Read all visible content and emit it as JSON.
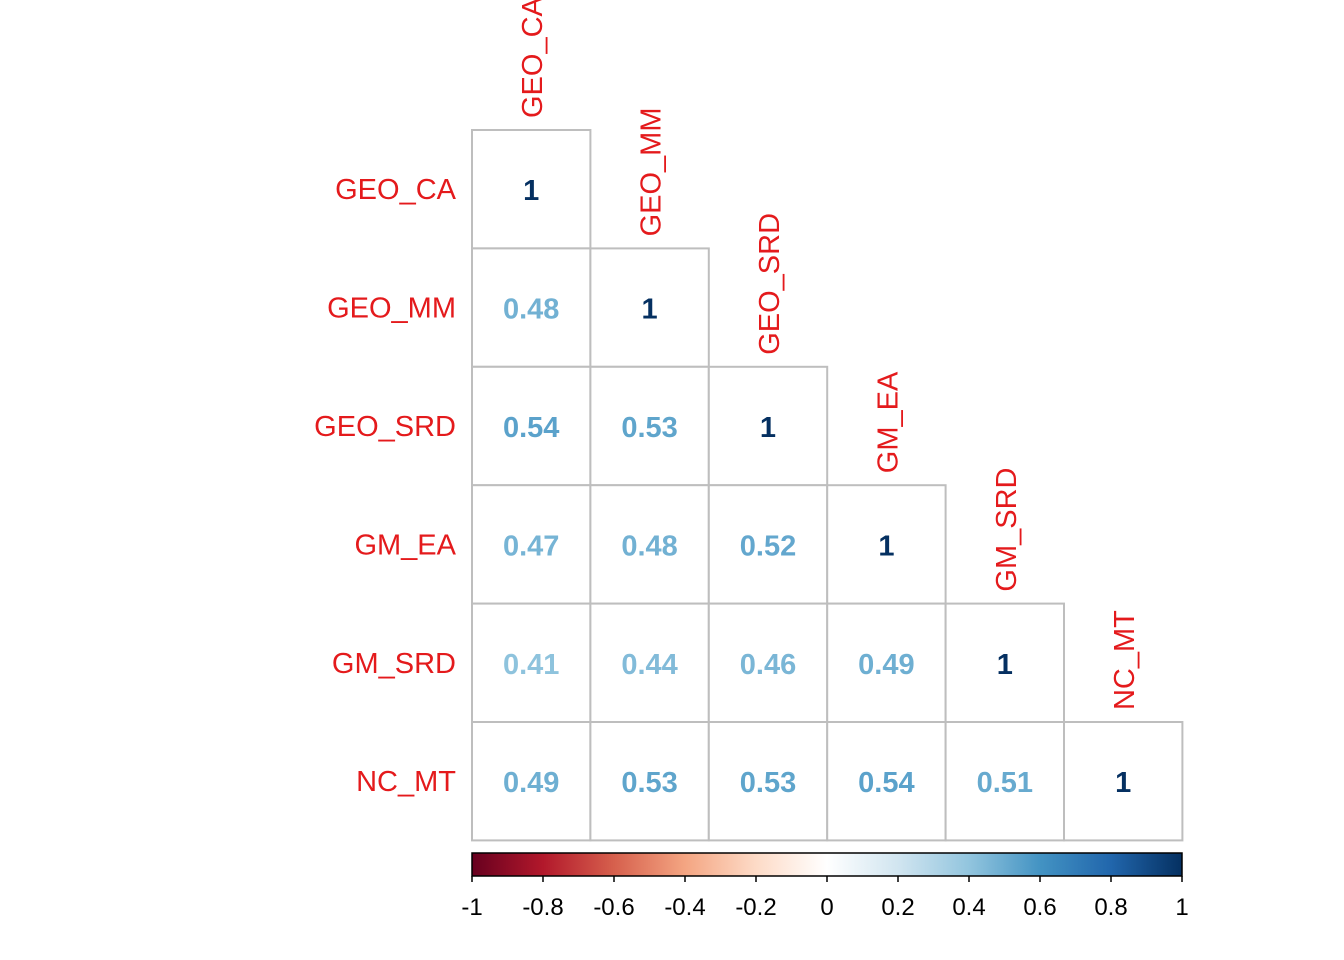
{
  "chart_data": {
    "type": "heatmap",
    "subtype": "lower-triangle correlation matrix",
    "variables": [
      "GEO_CA",
      "GEO_MM",
      "GEO_SRD",
      "GM_EA",
      "GM_SRD",
      "NC_MT"
    ],
    "row_labels": [
      "GEO_CA",
      "GEO_MM",
      "GEO_SRD",
      "GM_EA",
      "GM_SRD",
      "NC_MT"
    ],
    "col_labels": [
      "GEO_CA",
      "GEO_MM",
      "GEO_SRD",
      "GM_EA",
      "GM_SRD",
      "NC_MT"
    ],
    "cells": [
      {
        "row": 0,
        "col": 0,
        "value": 1,
        "label": "1"
      },
      {
        "row": 1,
        "col": 0,
        "value": 0.48,
        "label": "0.48"
      },
      {
        "row": 1,
        "col": 1,
        "value": 1,
        "label": "1"
      },
      {
        "row": 2,
        "col": 0,
        "value": 0.54,
        "label": "0.54"
      },
      {
        "row": 2,
        "col": 1,
        "value": 0.53,
        "label": "0.53"
      },
      {
        "row": 2,
        "col": 2,
        "value": 1,
        "label": "1"
      },
      {
        "row": 3,
        "col": 0,
        "value": 0.47,
        "label": "0.47"
      },
      {
        "row": 3,
        "col": 1,
        "value": 0.48,
        "label": "0.48"
      },
      {
        "row": 3,
        "col": 2,
        "value": 0.52,
        "label": "0.52"
      },
      {
        "row": 3,
        "col": 3,
        "value": 1,
        "label": "1"
      },
      {
        "row": 4,
        "col": 0,
        "value": 0.41,
        "label": "0.41"
      },
      {
        "row": 4,
        "col": 1,
        "value": 0.44,
        "label": "0.44"
      },
      {
        "row": 4,
        "col": 2,
        "value": 0.46,
        "label": "0.46"
      },
      {
        "row": 4,
        "col": 3,
        "value": 0.49,
        "label": "0.49"
      },
      {
        "row": 4,
        "col": 4,
        "value": 1,
        "label": "1"
      },
      {
        "row": 5,
        "col": 0,
        "value": 0.49,
        "label": "0.49"
      },
      {
        "row": 5,
        "col": 1,
        "value": 0.53,
        "label": "0.53"
      },
      {
        "row": 5,
        "col": 2,
        "value": 0.53,
        "label": "0.53"
      },
      {
        "row": 5,
        "col": 3,
        "value": 0.54,
        "label": "0.54"
      },
      {
        "row": 5,
        "col": 4,
        "value": 0.51,
        "label": "0.51"
      },
      {
        "row": 5,
        "col": 5,
        "value": 1,
        "label": "1"
      }
    ],
    "colorbar": {
      "range": [
        -1,
        1
      ],
      "ticks": [
        "-1",
        "-0.8",
        "-0.6",
        "-0.4",
        "-0.2",
        "0",
        "0.2",
        "0.4",
        "0.6",
        "0.8",
        "1"
      ],
      "gradient_colors": [
        "#67001F",
        "#B2182B",
        "#D6604D",
        "#F4A582",
        "#FDDBC7",
        "#FFFFFF",
        "#D1E5F0",
        "#92C5DE",
        "#4393C3",
        "#2166AC",
        "#053061"
      ]
    },
    "label_color": "#E41A1C",
    "grid": true,
    "legend_position": "bottom"
  }
}
